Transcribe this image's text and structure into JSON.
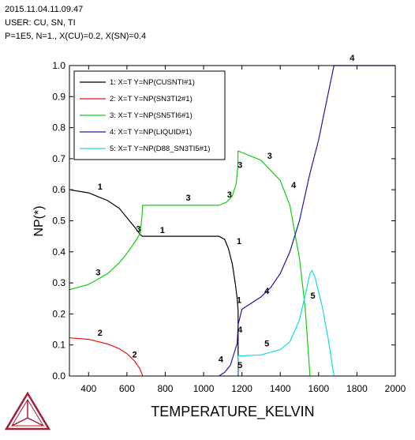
{
  "header": {
    "timestamp": "2015.11.04.11.09.47",
    "user": "USER: CU, SN, TI",
    "conditions": "P=1E5, N=1., X(CU)=0.2, X(SN)=0.4"
  },
  "chart_data": {
    "type": "line",
    "title": "",
    "xlabel": "TEMPERATURE_KELVIN",
    "ylabel": "NP(*)",
    "xlim": [
      300,
      2000
    ],
    "ylim": [
      0,
      1
    ],
    "xticks": [
      400,
      600,
      800,
      1000,
      1200,
      1400,
      1600,
      1800,
      2000
    ],
    "yticks": [
      0.0,
      0.1,
      0.2,
      0.3,
      0.4,
      0.5,
      0.6,
      0.7,
      0.8,
      0.9,
      1.0
    ],
    "grid": false,
    "legend_position": "top-left",
    "series": [
      {
        "name": "1:  X=T  Y=NP(CUSNTI#1)",
        "label": "1",
        "color": "#000000",
        "x": [
          300,
          400,
          500,
          560,
          600,
          640,
          670,
          682,
          700,
          800,
          900,
          1000,
          1080,
          1110,
          1130,
          1150,
          1165,
          1175,
          1179,
          1180,
          1180
        ],
        "y": [
          0.6,
          0.59,
          0.565,
          0.54,
          0.51,
          0.48,
          0.455,
          0.45,
          0.45,
          0.45,
          0.45,
          0.45,
          0.45,
          0.44,
          0.41,
          0.36,
          0.3,
          0.25,
          0.22,
          0.21,
          0.0
        ]
      },
      {
        "name": "2:  X=T  Y=NP(SN3TI2#1)",
        "label": "2",
        "color": "#ee1111",
        "x": [
          300,
          400,
          500,
          560,
          600,
          640,
          665,
          675,
          682
        ],
        "y": [
          0.123,
          0.118,
          0.103,
          0.088,
          0.072,
          0.048,
          0.026,
          0.012,
          0.0
        ]
      },
      {
        "name": "3:  X=T  Y=NP(SN5TI6#1)",
        "label": "3",
        "color": "#11cc11",
        "x": [
          300,
          400,
          500,
          560,
          600,
          640,
          670,
          680,
          682,
          700,
          800,
          900,
          1000,
          1080,
          1120,
          1150,
          1170,
          1178,
          1180,
          1200,
          1300,
          1400,
          1450,
          1500,
          1530,
          1555
        ],
        "y": [
          0.278,
          0.295,
          0.33,
          0.365,
          0.395,
          0.43,
          0.46,
          0.525,
          0.55,
          0.55,
          0.55,
          0.55,
          0.55,
          0.55,
          0.56,
          0.58,
          0.62,
          0.67,
          0.725,
          0.72,
          0.695,
          0.63,
          0.55,
          0.38,
          0.22,
          0.0
        ]
      },
      {
        "name": "4:  X=T  Y=NP(LIQUID#1)",
        "label": "4",
        "color": "#1a1aa0",
        "x": [
          1080,
          1110,
          1140,
          1160,
          1175,
          1180,
          1200,
          1250,
          1300,
          1350,
          1400,
          1450,
          1500,
          1550,
          1560,
          1600,
          1640,
          1680,
          1700,
          1800,
          1900,
          2000
        ],
        "y": [
          0.0,
          0.012,
          0.035,
          0.075,
          0.105,
          0.165,
          0.215,
          0.235,
          0.255,
          0.285,
          0.33,
          0.4,
          0.5,
          0.64,
          0.665,
          0.76,
          0.88,
          1.0,
          1.0,
          1.0,
          1.0,
          1.0
        ]
      },
      {
        "name": "5:  X=T  Y=NP(D88_SN3TI5#1)",
        "label": "5",
        "color": "#11dddd",
        "x": [
          1178,
          1180,
          1200,
          1300,
          1400,
          1450,
          1500,
          1530,
          1555,
          1565,
          1580,
          1620,
          1650,
          1680
        ],
        "y": [
          0.0,
          0.065,
          0.065,
          0.068,
          0.085,
          0.11,
          0.18,
          0.26,
          0.33,
          0.34,
          0.32,
          0.22,
          0.12,
          0.0
        ]
      }
    ]
  }
}
